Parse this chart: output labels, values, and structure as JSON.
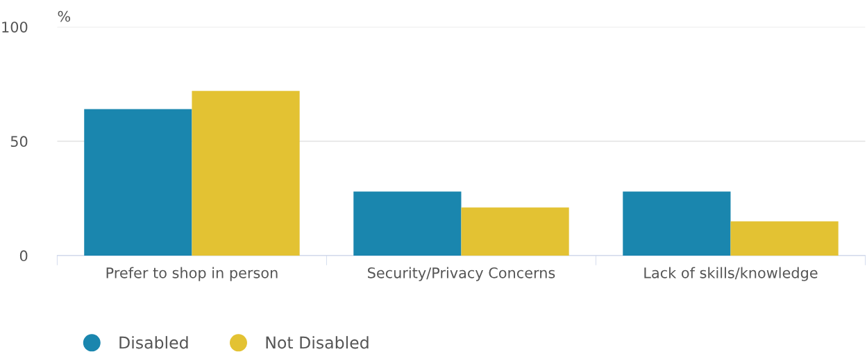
{
  "chart_data": {
    "type": "bar",
    "ylabel": "%",
    "categories": [
      "Prefer to shop in person",
      "Security/Privacy Concerns",
      "Lack of skills/knowledge"
    ],
    "series": [
      {
        "name": "Disabled",
        "color": "#1a86ae",
        "values": [
          64,
          28,
          28
        ]
      },
      {
        "name": "Not Disabled",
        "color": "#e3c233",
        "values": [
          72,
          21,
          15
        ]
      }
    ],
    "ylim": [
      0,
      100
    ],
    "yticks": [
      0,
      50,
      100
    ],
    "grid": "y",
    "legend": "bottom left"
  }
}
